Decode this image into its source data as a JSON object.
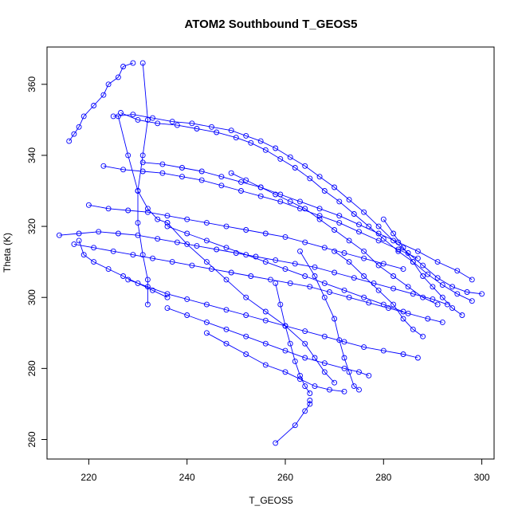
{
  "chart_data": {
    "type": "scatter",
    "title": "ATOM2 Southbound T_GEOS5",
    "xlabel": "T_GEOS5",
    "ylabel": "Theta (K)",
    "xlim": [
      211.5,
      302.5
    ],
    "ylim": [
      254.5,
      370.5
    ],
    "xticks": [
      220,
      240,
      260,
      280,
      300
    ],
    "yticks": [
      260,
      280,
      300,
      320,
      340,
      360
    ],
    "grid": false,
    "legend": "none",
    "marker": "open-circle",
    "connected": true,
    "color": "#0000ff",
    "series": [
      {
        "points": [
          [
            225,
            351
          ],
          [
            229,
            351.5
          ],
          [
            233,
            350.5
          ],
          [
            237,
            349.5
          ],
          [
            241,
            349
          ],
          [
            245,
            348
          ],
          [
            249,
            347
          ],
          [
            252,
            345.5
          ],
          [
            255,
            344
          ],
          [
            258,
            342
          ],
          [
            261,
            339.5
          ],
          [
            264,
            337
          ],
          [
            267,
            334
          ],
          [
            270,
            331
          ],
          [
            273,
            327.5
          ],
          [
            276,
            324
          ],
          [
            279,
            320
          ],
          [
            282,
            316
          ],
          [
            285,
            312.5
          ],
          [
            288,
            309
          ],
          [
            291,
            305.5
          ],
          [
            294,
            303
          ],
          [
            297,
            301.5
          ],
          [
            300,
            301
          ]
        ]
      },
      {
        "points": [
          [
            226.5,
            352
          ],
          [
            230,
            350
          ],
          [
            234,
            349
          ],
          [
            238,
            348.5
          ],
          [
            242,
            347.5
          ],
          [
            246,
            346.5
          ],
          [
            250,
            345
          ],
          [
            253,
            343.5
          ],
          [
            256,
            341.5
          ],
          [
            259,
            339
          ],
          [
            262,
            336.5
          ],
          [
            265,
            333.5
          ],
          [
            268,
            330
          ],
          [
            271,
            327
          ],
          [
            274,
            323.5
          ],
          [
            277,
            320
          ],
          [
            280,
            316.5
          ],
          [
            283,
            313
          ],
          [
            286,
            310
          ],
          [
            289,
            306.5
          ],
          [
            292,
            303.5
          ],
          [
            295,
            301
          ],
          [
            298,
            299
          ]
        ]
      },
      {
        "points": [
          [
            231,
            338
          ],
          [
            235,
            337.5
          ],
          [
            239,
            336.5
          ],
          [
            243,
            335.5
          ],
          [
            247,
            334
          ],
          [
            251,
            332.5
          ],
          [
            255,
            331
          ],
          [
            259,
            329
          ],
          [
            263,
            327
          ],
          [
            267,
            325
          ],
          [
            271,
            323
          ],
          [
            275,
            320.5
          ],
          [
            279,
            318
          ],
          [
            283,
            315.5
          ],
          [
            287,
            313
          ],
          [
            291,
            310
          ],
          [
            295,
            307.5
          ],
          [
            298,
            305
          ]
        ]
      },
      {
        "points": [
          [
            214,
            317.5
          ],
          [
            218,
            318
          ],
          [
            222,
            318.5
          ],
          [
            226,
            318
          ],
          [
            230,
            317.5
          ],
          [
            234,
            316.5
          ],
          [
            238,
            315.5
          ],
          [
            242,
            314.5
          ],
          [
            246,
            313.5
          ],
          [
            250,
            312.5
          ],
          [
            254,
            311.5
          ],
          [
            258,
            310.5
          ],
          [
            262,
            309.5
          ],
          [
            266,
            308.5
          ],
          [
            270,
            307
          ],
          [
            274,
            305.5
          ],
          [
            278,
            304
          ],
          [
            282,
            302.5
          ],
          [
            286,
            301
          ],
          [
            290,
            299.5
          ],
          [
            293,
            298
          ]
        ]
      },
      {
        "points": [
          [
            217,
            315
          ],
          [
            221,
            314
          ],
          [
            225,
            313
          ],
          [
            229,
            312
          ],
          [
            233,
            311
          ],
          [
            237,
            310
          ],
          [
            241,
            309
          ],
          [
            245,
            308
          ],
          [
            249,
            307
          ],
          [
            253,
            306
          ],
          [
            257,
            305
          ],
          [
            261,
            304
          ],
          [
            265,
            303
          ],
          [
            269,
            301.5
          ],
          [
            273,
            300
          ],
          [
            277,
            298.5
          ],
          [
            281,
            297
          ],
          [
            285,
            295.5
          ],
          [
            289,
            294
          ],
          [
            292,
            293
          ]
        ]
      },
      {
        "points": [
          [
            220,
            326
          ],
          [
            224,
            325
          ],
          [
            228,
            324.5
          ],
          [
            232,
            324
          ],
          [
            236,
            323
          ],
          [
            240,
            322
          ],
          [
            244,
            321
          ],
          [
            248,
            320
          ],
          [
            252,
            319
          ],
          [
            256,
            318
          ],
          [
            260,
            317
          ],
          [
            264,
            315.5
          ],
          [
            268,
            314
          ],
          [
            272,
            312.5
          ],
          [
            276,
            311
          ],
          [
            280,
            309.5
          ],
          [
            284,
            308
          ]
        ]
      },
      {
        "points": [
          [
            228,
            305
          ],
          [
            232,
            303
          ],
          [
            236,
            301
          ],
          [
            240,
            299.5
          ],
          [
            244,
            298
          ],
          [
            248,
            296.5
          ],
          [
            252,
            295
          ],
          [
            256,
            293.5
          ],
          [
            260,
            292
          ],
          [
            264,
            290.5
          ],
          [
            268,
            289
          ],
          [
            272,
            287.5
          ],
          [
            276,
            286
          ],
          [
            280,
            285
          ],
          [
            284,
            284
          ],
          [
            287,
            283
          ]
        ]
      },
      {
        "points": [
          [
            236,
            297
          ],
          [
            240,
            295
          ],
          [
            244,
            293
          ],
          [
            248,
            291
          ],
          [
            252,
            289
          ],
          [
            256,
            287
          ],
          [
            260,
            285
          ],
          [
            264,
            283
          ],
          [
            268,
            281.5
          ],
          [
            272,
            280
          ],
          [
            275,
            279
          ],
          [
            277,
            278
          ]
        ]
      },
      {
        "points": [
          [
            244,
            290
          ],
          [
            248,
            287
          ],
          [
            252,
            284
          ],
          [
            256,
            281
          ],
          [
            260,
            279
          ],
          [
            263,
            277
          ],
          [
            266,
            275
          ],
          [
            269,
            274
          ],
          [
            272,
            273.5
          ]
        ]
      },
      {
        "points": [
          [
            216,
            344
          ],
          [
            217,
            346
          ],
          [
            218,
            348
          ],
          [
            219,
            351
          ],
          [
            221,
            354
          ],
          [
            223,
            357
          ],
          [
            224,
            360
          ],
          [
            226,
            362
          ],
          [
            227,
            365
          ],
          [
            229,
            366
          ]
        ]
      },
      {
        "points": [
          [
            231,
            366
          ],
          [
            232,
            350
          ],
          [
            231,
            340
          ],
          [
            230,
            330
          ],
          [
            230,
            321
          ],
          [
            231,
            312
          ],
          [
            232,
            305
          ],
          [
            232,
            298
          ]
        ]
      },
      {
        "points": [
          [
            226,
            351
          ],
          [
            228,
            340
          ],
          [
            230,
            330
          ],
          [
            232,
            325
          ],
          [
            234,
            322
          ],
          [
            236,
            321
          ]
        ]
      },
      {
        "points": [
          [
            236,
            321
          ],
          [
            240,
            315
          ],
          [
            244,
            310
          ],
          [
            248,
            305
          ],
          [
            252,
            300
          ],
          [
            256,
            296
          ],
          [
            260,
            292
          ],
          [
            264,
            287
          ],
          [
            266,
            283
          ],
          [
            268,
            279
          ],
          [
            270,
            276
          ]
        ]
      },
      {
        "points": [
          [
            258,
            259
          ],
          [
            262,
            264
          ],
          [
            264,
            268
          ],
          [
            265,
            270
          ],
          [
            265,
            271
          ]
        ]
      },
      {
        "points": [
          [
            258,
            304
          ],
          [
            259,
            298
          ],
          [
            260,
            292
          ],
          [
            261,
            287
          ],
          [
            262,
            282
          ],
          [
            263,
            278
          ],
          [
            264,
            275
          ],
          [
            265,
            273
          ]
        ]
      },
      {
        "points": [
          [
            218,
            316
          ],
          [
            219,
            312
          ],
          [
            221,
            310
          ],
          [
            224,
            308
          ],
          [
            227,
            306
          ],
          [
            230,
            304
          ],
          [
            233,
            302
          ],
          [
            236,
            300
          ]
        ]
      },
      {
        "points": [
          [
            280,
            322
          ],
          [
            282,
            318
          ],
          [
            284,
            314
          ],
          [
            286,
            310
          ],
          [
            288,
            306
          ],
          [
            290,
            303
          ],
          [
            292,
            300
          ],
          [
            294,
            297
          ],
          [
            296,
            295
          ]
        ]
      },
      {
        "points": [
          [
            270,
            313
          ],
          [
            273,
            310
          ],
          [
            276,
            306
          ],
          [
            279,
            302
          ],
          [
            282,
            298
          ],
          [
            284,
            294
          ],
          [
            286,
            291
          ],
          [
            288,
            289
          ]
        ]
      },
      {
        "points": [
          [
            249,
            335
          ],
          [
            252,
            333
          ],
          [
            255,
            331
          ],
          [
            258,
            329
          ],
          [
            261,
            327
          ],
          [
            264,
            325
          ],
          [
            267,
            322
          ],
          [
            270,
            319
          ],
          [
            273,
            316
          ],
          [
            276,
            313
          ],
          [
            279,
            309
          ],
          [
            282,
            306
          ],
          [
            285,
            303
          ],
          [
            288,
            300
          ],
          [
            291,
            298
          ]
        ]
      },
      {
        "points": [
          [
            223,
            337
          ],
          [
            227,
            336
          ],
          [
            231,
            335.5
          ],
          [
            235,
            335
          ],
          [
            239,
            334
          ],
          [
            243,
            333
          ],
          [
            247,
            331.5
          ],
          [
            251,
            330
          ],
          [
            255,
            328.5
          ],
          [
            259,
            327
          ],
          [
            263,
            325
          ],
          [
            267,
            323
          ],
          [
            271,
            321
          ],
          [
            275,
            318.5
          ],
          [
            279,
            316
          ],
          [
            283,
            313.5
          ],
          [
            287,
            311
          ]
        ]
      },
      {
        "points": [
          [
            236,
            320
          ],
          [
            240,
            318
          ],
          [
            244,
            316
          ],
          [
            248,
            314
          ],
          [
            252,
            312
          ],
          [
            256,
            310
          ],
          [
            260,
            308
          ],
          [
            264,
            306
          ],
          [
            268,
            304
          ],
          [
            272,
            302
          ],
          [
            276,
            300
          ],
          [
            280,
            298
          ],
          [
            284,
            296
          ]
        ]
      },
      {
        "points": [
          [
            263,
            313
          ],
          [
            266,
            306
          ],
          [
            268,
            300
          ],
          [
            270,
            294
          ],
          [
            271,
            288
          ],
          [
            272,
            283
          ],
          [
            273,
            279
          ],
          [
            274,
            275
          ],
          [
            275,
            274
          ]
        ]
      }
    ]
  }
}
